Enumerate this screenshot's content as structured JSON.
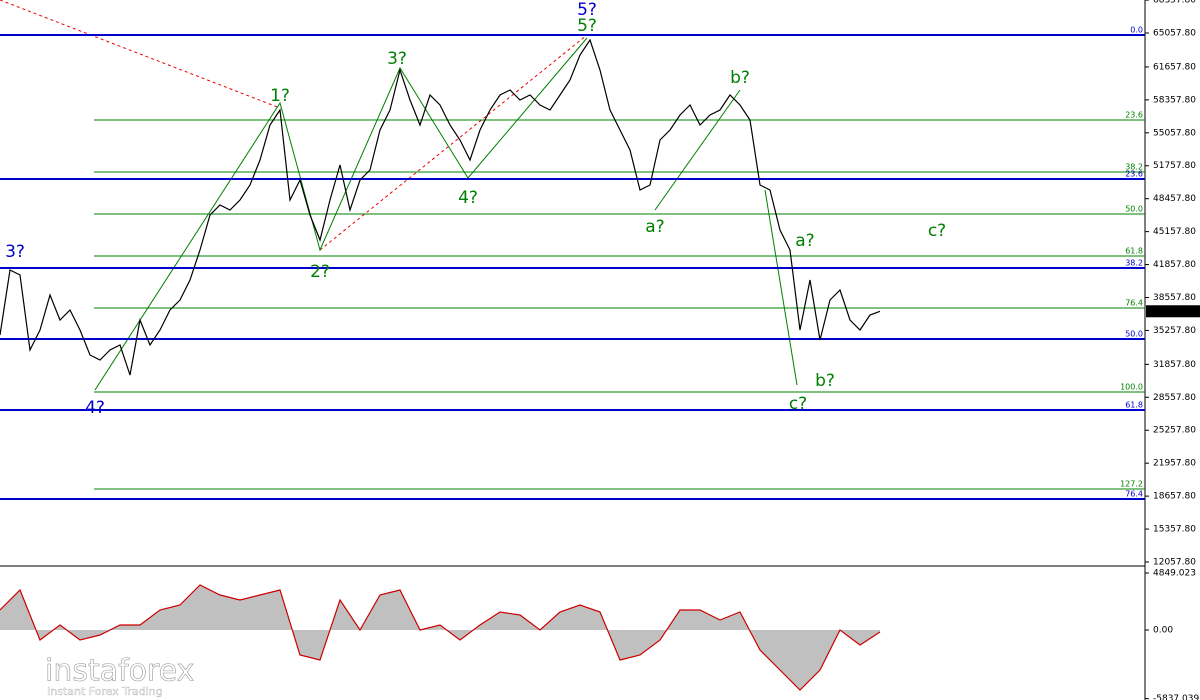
{
  "chart_data": [
    {
      "type": "line",
      "color": "#000000",
      "values": [
        34797,
        41310,
        40809,
        33294,
        35298,
        38805,
        36300,
        37302,
        35298,
        32793,
        32292,
        33294,
        33795,
        30789,
        36300,
        33795,
        35298,
        37302,
        38304,
        40308,
        43314,
        46821,
        47823,
        47322,
        48324,
        49827,
        52332,
        55839,
        57342,
        48324,
        50328,
        46821,
        44316,
        48324,
        51831,
        47322,
        50328,
        51330,
        55338,
        57342,
        61350,
        58344,
        55839,
        58845,
        57843,
        55839,
        54336,
        52332,
        55338,
        57342,
        58845,
        59346,
        58344,
        58845,
        57843,
        57342,
        58845,
        60348,
        62853,
        64356,
        61350,
        57342,
        55338,
        53334,
        49326,
        49827,
        54336,
        55338,
        56841,
        57843,
        55839,
        56841,
        57342,
        58845,
        57843,
        56340,
        49827,
        49326,
        45318,
        43314,
        35298,
        40308,
        34296,
        38304,
        39306,
        36300,
        35298,
        36801,
        37179
      ],
      "ylim": [
        11757,
        68364
      ],
      "yticks": [
        {
          "value": 68357.8,
          "label": "68357.80"
        },
        {
          "value": 65057.8,
          "label": "65057.80"
        },
        {
          "value": 61657.8,
          "label": "61657.80"
        },
        {
          "value": 58357.8,
          "label": "58357.80"
        },
        {
          "value": 55057.8,
          "label": "55057.80"
        },
        {
          "value": 51757.8,
          "label": "51757.80"
        },
        {
          "value": 48457.8,
          "label": "48457.80"
        },
        {
          "value": 45157.8,
          "label": "45157.80"
        },
        {
          "value": 41857.8,
          "label": "41857.80"
        },
        {
          "value": 38557.8,
          "label": "38557.80"
        },
        {
          "value": 35257.8,
          "label": "35257.80"
        },
        {
          "value": 31857.8,
          "label": "31857.80"
        },
        {
          "value": 28557.8,
          "label": "28557.80"
        },
        {
          "value": 25257.8,
          "label": "25257.80"
        },
        {
          "value": 21957.8,
          "label": "21957.80"
        },
        {
          "value": 18657.8,
          "label": "18657.80"
        },
        {
          "value": 15357.8,
          "label": "15357.80"
        },
        {
          "value": 12057.8,
          "label": "12057.80"
        }
      ],
      "last_price": {
        "value": 37178.97,
        "label": "37178.97"
      },
      "levels": [
        {
          "ratio": "0.0",
          "price": 64857,
          "color": "#0000cc"
        },
        {
          "ratio": "23.6",
          "price": 56340,
          "color": "#008000"
        },
        {
          "ratio": "38.2",
          "price": 51130,
          "color": "#008000"
        },
        {
          "ratio": "23.6",
          "price": 50428,
          "color": "#0000cc"
        },
        {
          "ratio": "50.0",
          "price": 46921,
          "color": "#008000"
        },
        {
          "ratio": "61.8",
          "price": 42713,
          "color": "#008000"
        },
        {
          "ratio": "38.2",
          "price": 41511,
          "color": "#0000cc"
        },
        {
          "ratio": "76.4",
          "price": 37502,
          "color": "#008000"
        },
        {
          "ratio": "50.0",
          "price": 34396,
          "color": "#0000cc"
        },
        {
          "ratio": "100.0",
          "price": 29086,
          "color": "#008000"
        },
        {
          "ratio": "61.8",
          "price": 27282,
          "color": "#0000cc"
        },
        {
          "ratio": "127.2",
          "price": 19366,
          "color": "#008000"
        },
        {
          "ratio": "76.4",
          "price": 18364,
          "color": "#0000cc"
        }
      ],
      "annotations": [
        {
          "text": "3?",
          "color": "#0000cc"
        },
        {
          "text": "4?",
          "color": "#0000cc"
        },
        {
          "text": "5?",
          "color": "#0000cc"
        },
        {
          "text": "1?",
          "color": "#008000"
        },
        {
          "text": "2?",
          "color": "#008000"
        },
        {
          "text": "3?",
          "color": "#008000"
        },
        {
          "text": "4?",
          "color": "#008000"
        },
        {
          "text": "5?",
          "color": "#008000"
        },
        {
          "text": "a?",
          "color": "#008000"
        },
        {
          "text": "b?",
          "color": "#008000"
        },
        {
          "text": "a?",
          "color": "#008000"
        },
        {
          "text": "b?",
          "color": "#008000"
        },
        {
          "text": "c?",
          "color": "#008000"
        },
        {
          "text": "c?",
          "color": "#008000"
        }
      ]
    },
    {
      "type": "area",
      "color": "#cc0000",
      "fill": "#c0c0c0",
      "values": [
        1700,
        3400,
        -850,
        425,
        -850,
        -425,
        425,
        425,
        1700,
        2125,
        3825,
        2975,
        2550,
        2975,
        3400,
        -2125,
        -2550,
        2550,
        0,
        2975,
        3400,
        0,
        425,
        -850,
        425,
        1530,
        1275,
        0,
        1530,
        2125,
        1530,
        -2550,
        -2125,
        -850,
        1700,
        1700,
        850,
        1530,
        -1700,
        -3400,
        -5100,
        -3400,
        0,
        -1275,
        -170
      ],
      "ylim": [
        -5951,
        5359
      ],
      "yticks": [
        {
          "value": 4849.023,
          "label": "4849.023"
        },
        {
          "value": 0,
          "label": "0.00"
        },
        {
          "value": -5837.039,
          "label": "-5837.039"
        }
      ]
    }
  ],
  "branding": {
    "name": "instaforex",
    "tagline": "Instant Forex Trading"
  }
}
